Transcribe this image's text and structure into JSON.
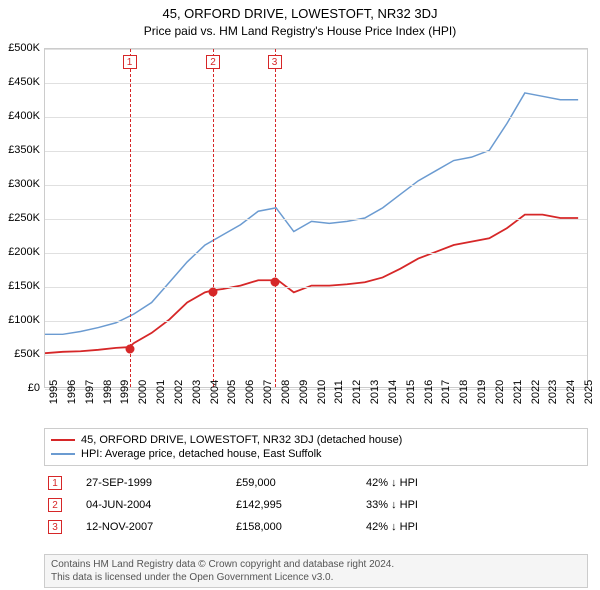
{
  "title": "45, ORFORD DRIVE, LOWESTOFT, NR32 3DJ",
  "subtitle": "Price paid vs. HM Land Registry's House Price Index (HPI)",
  "chart": {
    "type": "line",
    "background_color": "#ffffff",
    "grid_color": "#e0e0e0",
    "border_color": "#cccccc",
    "xlim": [
      1995,
      2025.5
    ],
    "ylim": [
      0,
      500000
    ],
    "ytick_step": 50000,
    "yticks": [
      {
        "v": 0,
        "label": "£0"
      },
      {
        "v": 50000,
        "label": "£50K"
      },
      {
        "v": 100000,
        "label": "£100K"
      },
      {
        "v": 150000,
        "label": "£150K"
      },
      {
        "v": 200000,
        "label": "£200K"
      },
      {
        "v": 250000,
        "label": "£250K"
      },
      {
        "v": 300000,
        "label": "£300K"
      },
      {
        "v": 350000,
        "label": "£350K"
      },
      {
        "v": 400000,
        "label": "£400K"
      },
      {
        "v": 450000,
        "label": "£450K"
      },
      {
        "v": 500000,
        "label": "£500K"
      }
    ],
    "xticks": [
      1995,
      1996,
      1997,
      1998,
      1999,
      2000,
      2001,
      2002,
      2003,
      2004,
      2005,
      2006,
      2007,
      2008,
      2009,
      2010,
      2011,
      2012,
      2013,
      2014,
      2015,
      2016,
      2017,
      2018,
      2019,
      2020,
      2021,
      2022,
      2023,
      2024,
      2025
    ],
    "series": [
      {
        "name": "45, ORFORD DRIVE, LOWESTOFT, NR32 3DJ (detached house)",
        "color": "#d62728",
        "line_width": 1.8,
        "points": [
          [
            1995,
            50000
          ],
          [
            1996,
            52000
          ],
          [
            1997,
            53000
          ],
          [
            1998,
            55000
          ],
          [
            1999,
            58000
          ],
          [
            1999.74,
            59000
          ],
          [
            2000,
            65000
          ],
          [
            2001,
            80000
          ],
          [
            2002,
            100000
          ],
          [
            2003,
            125000
          ],
          [
            2004,
            140000
          ],
          [
            2004.42,
            142995
          ],
          [
            2005,
            145000
          ],
          [
            2006,
            150000
          ],
          [
            2007,
            158000
          ],
          [
            2007.87,
            158000
          ],
          [
            2008,
            160000
          ],
          [
            2009,
            140000
          ],
          [
            2010,
            150000
          ],
          [
            2011,
            150000
          ],
          [
            2012,
            152000
          ],
          [
            2013,
            155000
          ],
          [
            2014,
            162000
          ],
          [
            2015,
            175000
          ],
          [
            2016,
            190000
          ],
          [
            2017,
            200000
          ],
          [
            2018,
            210000
          ],
          [
            2019,
            215000
          ],
          [
            2020,
            220000
          ],
          [
            2021,
            235000
          ],
          [
            2022,
            255000
          ],
          [
            2023,
            255000
          ],
          [
            2024,
            250000
          ],
          [
            2025,
            250000
          ]
        ]
      },
      {
        "name": "HPI: Average price, detached house, East Suffolk",
        "color": "#6b9bd1",
        "line_width": 1.5,
        "points": [
          [
            1995,
            78000
          ],
          [
            1996,
            78000
          ],
          [
            1997,
            82000
          ],
          [
            1998,
            88000
          ],
          [
            1999,
            95000
          ],
          [
            2000,
            108000
          ],
          [
            2001,
            125000
          ],
          [
            2002,
            155000
          ],
          [
            2003,
            185000
          ],
          [
            2004,
            210000
          ],
          [
            2005,
            225000
          ],
          [
            2006,
            240000
          ],
          [
            2007,
            260000
          ],
          [
            2008,
            265000
          ],
          [
            2009,
            230000
          ],
          [
            2010,
            245000
          ],
          [
            2011,
            242000
          ],
          [
            2012,
            245000
          ],
          [
            2013,
            250000
          ],
          [
            2014,
            265000
          ],
          [
            2015,
            285000
          ],
          [
            2016,
            305000
          ],
          [
            2017,
            320000
          ],
          [
            2018,
            335000
          ],
          [
            2019,
            340000
          ],
          [
            2020,
            350000
          ],
          [
            2021,
            390000
          ],
          [
            2022,
            435000
          ],
          [
            2023,
            430000
          ],
          [
            2024,
            425000
          ],
          [
            2025,
            425000
          ]
        ]
      }
    ],
    "markers": [
      {
        "n": "1",
        "x": 1999.74,
        "color": "#d62728"
      },
      {
        "n": "2",
        "x": 2004.42,
        "color": "#d62728"
      },
      {
        "n": "3",
        "x": 2007.87,
        "color": "#d62728"
      }
    ],
    "sale_points": [
      {
        "x": 1999.74,
        "y": 59000,
        "color": "#d62728"
      },
      {
        "x": 2004.42,
        "y": 142995,
        "color": "#d62728"
      },
      {
        "x": 2007.87,
        "y": 158000,
        "color": "#d62728"
      }
    ],
    "title_fontsize": 13,
    "label_fontsize": 11
  },
  "legend": {
    "items": [
      {
        "color": "#d62728",
        "label": "45, ORFORD DRIVE, LOWESTOFT, NR32 3DJ (detached house)"
      },
      {
        "color": "#6b9bd1",
        "label": "HPI: Average price, detached house, East Suffolk"
      }
    ]
  },
  "sales": [
    {
      "n": "1",
      "color": "#d62728",
      "date": "27-SEP-1999",
      "price": "£59,000",
      "delta": "42% ↓ HPI"
    },
    {
      "n": "2",
      "color": "#d62728",
      "date": "04-JUN-2004",
      "price": "£142,995",
      "delta": "33% ↓ HPI"
    },
    {
      "n": "3",
      "color": "#d62728",
      "date": "12-NOV-2007",
      "price": "£158,000",
      "delta": "42% ↓ HPI"
    }
  ],
  "footer": {
    "line1": "Contains HM Land Registry data © Crown copyright and database right 2024.",
    "line2": "This data is licensed under the Open Government Licence v3.0."
  }
}
